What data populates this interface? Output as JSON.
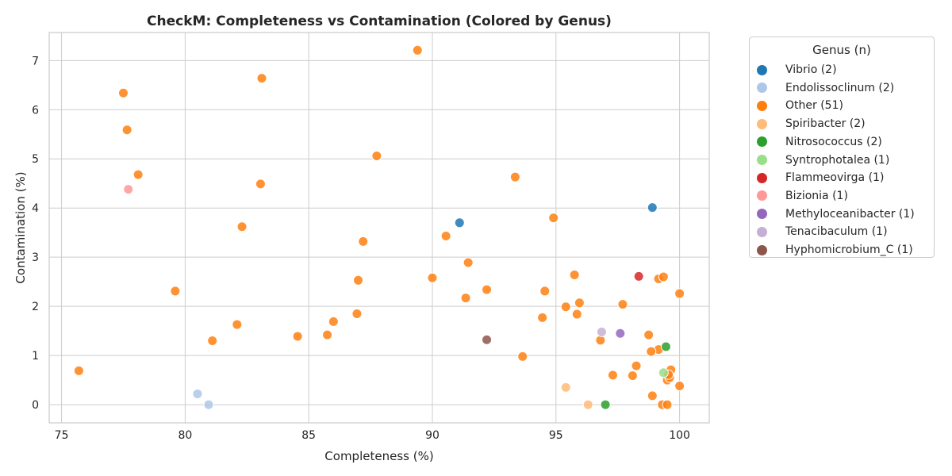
{
  "chart_data": {
    "type": "scatter",
    "title": "CheckM: Completeness vs Contamination (Colored by Genus)",
    "xlabel": "Completeness (%)",
    "ylabel": "Contamination (%)",
    "xlim": [
      74.5,
      101.2
    ],
    "ylim": [
      -0.37,
      7.57
    ],
    "xticks": [
      75,
      80,
      85,
      90,
      95,
      100
    ],
    "yticks": [
      0,
      1,
      2,
      3,
      4,
      5,
      6,
      7
    ],
    "grid": true,
    "legend": {
      "title": "Genus (n)",
      "placement": "outside-right"
    },
    "series": [
      {
        "name": "Vibrio (2)",
        "color": "#1f77b4",
        "points": [
          [
            91.1,
            3.7
          ],
          [
            98.9,
            4.01
          ]
        ]
      },
      {
        "name": "Endolissoclinum (2)",
        "color": "#aec7e8",
        "points": [
          [
            80.5,
            0.22
          ],
          [
            80.95,
            0.0
          ]
        ]
      },
      {
        "name": "Other (51)",
        "color": "#ff7f0e",
        "points": [
          [
            89.4,
            7.21
          ],
          [
            83.1,
            6.64
          ],
          [
            77.5,
            6.34
          ],
          [
            77.65,
            5.59
          ],
          [
            78.1,
            4.68
          ],
          [
            87.75,
            5.06
          ],
          [
            83.05,
            4.49
          ],
          [
            93.35,
            4.63
          ],
          [
            82.3,
            3.62
          ],
          [
            94.9,
            3.8
          ],
          [
            90.55,
            3.43
          ],
          [
            87.2,
            3.32
          ],
          [
            91.45,
            2.89
          ],
          [
            87.0,
            2.53
          ],
          [
            90.0,
            2.58
          ],
          [
            95.75,
            2.64
          ],
          [
            79.6,
            2.31
          ],
          [
            92.2,
            2.34
          ],
          [
            94.55,
            2.31
          ],
          [
            91.35,
            2.17
          ],
          [
            95.95,
            2.07
          ],
          [
            95.4,
            1.99
          ],
          [
            97.7,
            2.04
          ],
          [
            86.95,
            1.85
          ],
          [
            95.85,
            1.84
          ],
          [
            94.45,
            1.77
          ],
          [
            86.0,
            1.69
          ],
          [
            82.1,
            1.63
          ],
          [
            84.55,
            1.39
          ],
          [
            85.75,
            1.42
          ],
          [
            81.1,
            1.3
          ],
          [
            93.65,
            0.98
          ],
          [
            96.8,
            1.31
          ],
          [
            98.75,
            1.42
          ],
          [
            99.15,
            2.56
          ],
          [
            99.35,
            2.6
          ],
          [
            100.0,
            2.26
          ],
          [
            99.15,
            1.12
          ],
          [
            98.85,
            1.08
          ],
          [
            98.25,
            0.79
          ],
          [
            97.3,
            0.6
          ],
          [
            98.1,
            0.59
          ],
          [
            99.65,
            0.71
          ],
          [
            99.5,
            0.5
          ],
          [
            99.6,
            0.55
          ],
          [
            99.55,
            0.61
          ],
          [
            100.0,
            0.38
          ],
          [
            98.9,
            0.18
          ],
          [
            99.3,
            0.0
          ],
          [
            99.5,
            0.0
          ],
          [
            75.7,
            0.69
          ]
        ]
      },
      {
        "name": "Spiribacter (2)",
        "color": "#ffbb78",
        "points": [
          [
            95.4,
            0.35
          ],
          [
            96.3,
            0.0
          ]
        ]
      },
      {
        "name": "Nitrosococcus (2)",
        "color": "#2ca02c",
        "points": [
          [
            99.45,
            1.18
          ],
          [
            97.0,
            0.0
          ]
        ]
      },
      {
        "name": "Syntrophotalea (1)",
        "color": "#98df8a",
        "points": [
          [
            99.35,
            0.65
          ]
        ]
      },
      {
        "name": "Flammeovirga (1)",
        "color": "#d62728",
        "points": [
          [
            98.35,
            2.61
          ]
        ]
      },
      {
        "name": "Bizionia (1)",
        "color": "#ff9896",
        "points": [
          [
            77.7,
            4.38
          ]
        ]
      },
      {
        "name": "Methyloceanibacter (1)",
        "color": "#9467bd",
        "points": [
          [
            97.6,
            1.45
          ]
        ]
      },
      {
        "name": "Tenacibaculum (1)",
        "color": "#c5b0d5",
        "points": [
          [
            96.85,
            1.48
          ]
        ]
      },
      {
        "name": "Hyphomicrobium_C (1)",
        "color": "#8c564b",
        "points": [
          [
            92.2,
            1.32
          ]
        ]
      }
    ]
  }
}
